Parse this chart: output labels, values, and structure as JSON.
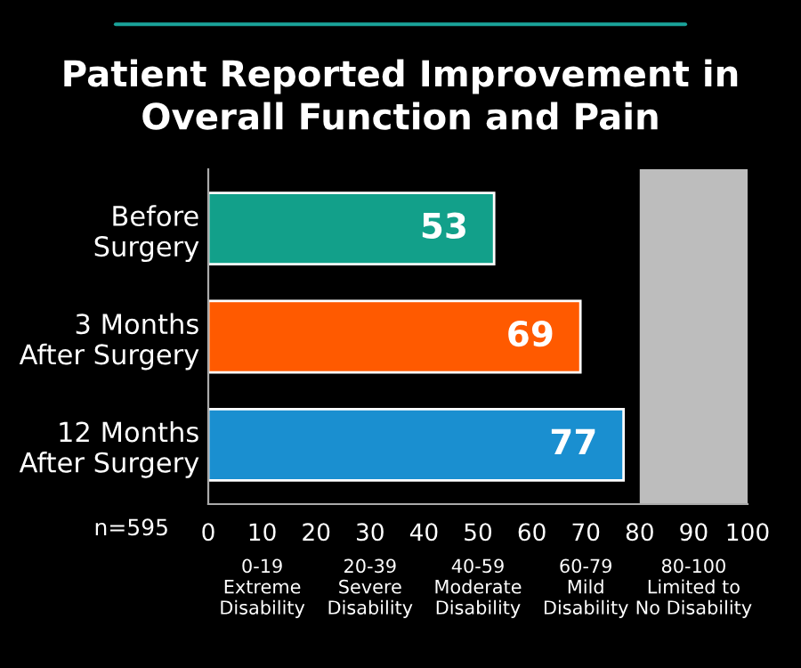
{
  "chart_data": {
    "type": "bar",
    "orientation": "horizontal",
    "title": "Patient Reported Improvement in\nOverall Function and Pain",
    "categories": [
      "Before\nSurgery",
      "3 Months\nAfter Surgery",
      "12 Months\nAfter Surgery"
    ],
    "values": [
      53,
      69,
      77
    ],
    "colors": [
      "#12a08a",
      "#ff5a00",
      "#1a8fd0"
    ],
    "data_labels": true,
    "xlim": [
      0,
      100
    ],
    "xticks": [
      0,
      10,
      20,
      30,
      40,
      50,
      60,
      70,
      80,
      90,
      100
    ],
    "bands": [
      {
        "axis": "x",
        "from": 80,
        "to": 100,
        "color": "#bdbdbd"
      }
    ],
    "grid": false,
    "legend": false,
    "annotations": [
      "n=595",
      "0-19\nExtreme\nDisability",
      "20-39\nSevere\nDisability",
      "40-59\nModerate\nDisability",
      "60-79\nMild\nDisability",
      "80-100\nLimited to\nNo Disability"
    ]
  }
}
